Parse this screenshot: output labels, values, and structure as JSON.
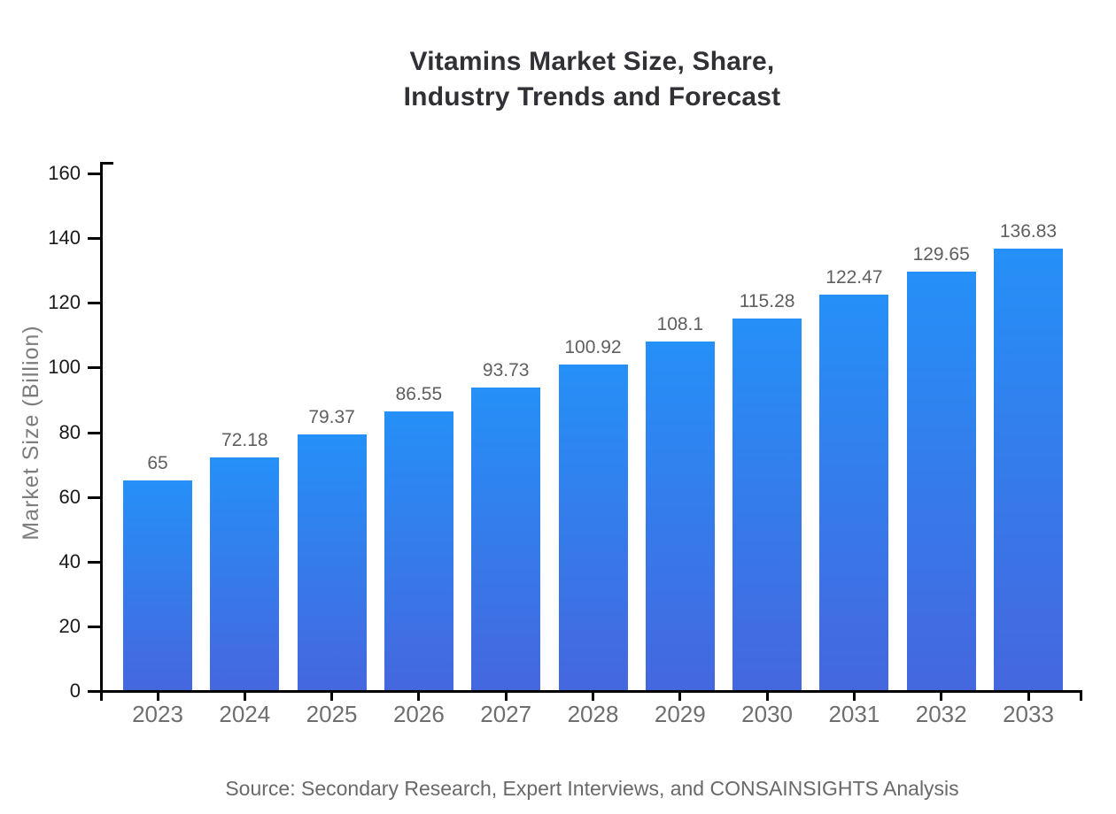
{
  "chart_data": {
    "type": "bar",
    "title": "Vitamins Market Size, Share, Industry Trends and Forecast",
    "title_lines": [
      "Vitamins Market Size, Share,",
      "Industry Trends and Forecast"
    ],
    "categories": [
      "2023",
      "2024",
      "2025",
      "2026",
      "2027",
      "2028",
      "2029",
      "2030",
      "2031",
      "2032",
      "2033"
    ],
    "values": [
      65,
      72.18,
      79.37,
      86.55,
      93.73,
      100.92,
      108.1,
      115.28,
      122.47,
      129.65,
      136.83
    ],
    "value_labels": [
      "65",
      "72.18",
      "79.37",
      "86.55",
      "93.73",
      "100.92",
      "108.1",
      "115.28",
      "122.47",
      "129.65",
      "136.83"
    ],
    "xlabel": "",
    "ylabel": "Market Size (Billion)",
    "ylim": [
      0,
      160
    ],
    "ytick_step": 20,
    "yticks": [
      0,
      20,
      40,
      60,
      80,
      100,
      120,
      140,
      160
    ],
    "grid": false,
    "legend": "none",
    "bar_gradient": {
      "top": "#2590F8",
      "bottom": "#4567DE"
    },
    "axis_color": "#000000",
    "ytick_label_color": "#1a1a1a",
    "xtick_label_color": "#6e6e6e",
    "value_label_color": "#5f5f5f",
    "title_color": "#303035",
    "source": "Source: Secondary Research, Expert Interviews, and CONSAINSIGHTS Analysis"
  }
}
